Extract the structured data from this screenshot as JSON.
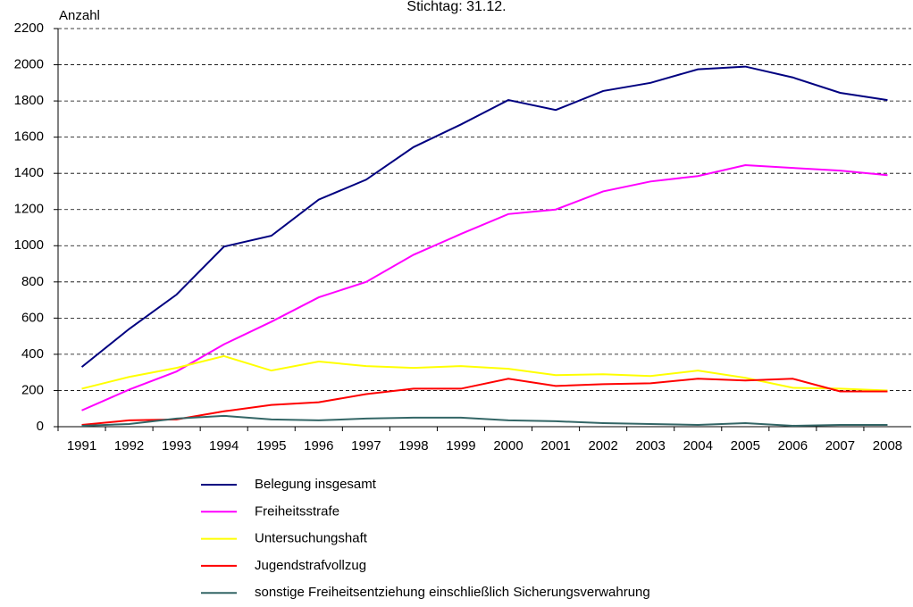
{
  "chart_data": {
    "type": "line",
    "title": "Stichtag: 31.12.",
    "y_label": "Anzahl",
    "categories": [
      "1991",
      "1992",
      "1993",
      "1994",
      "1995",
      "1996",
      "1997",
      "1998",
      "1999",
      "2000",
      "2001",
      "2002",
      "2003",
      "2004",
      "2005",
      "2006",
      "2007",
      "2008"
    ],
    "series": [
      {
        "name": "Belegung insgesamt",
        "color": "#000080",
        "values": [
          330,
          540,
          730,
          995,
          1055,
          1255,
          1365,
          1545,
          1670,
          1805,
          1750,
          1855,
          1900,
          1975,
          1990,
          1930,
          1845,
          1805
        ]
      },
      {
        "name": "Freiheitsstrafe",
        "color": "#ff00ff",
        "values": [
          90,
          205,
          305,
          455,
          580,
          715,
          800,
          950,
          1065,
          1175,
          1200,
          1300,
          1355,
          1385,
          1445,
          1430,
          1415,
          1390
        ]
      },
      {
        "name": "Untersuchungshaft",
        "color": "#ffff00",
        "values": [
          210,
          275,
          325,
          390,
          310,
          360,
          335,
          325,
          335,
          320,
          285,
          290,
          280,
          310,
          270,
          215,
          210,
          200
        ]
      },
      {
        "name": "Jugendstrafvollzug",
        "color": "#ff0000",
        "values": [
          10,
          35,
          40,
          85,
          120,
          135,
          180,
          210,
          210,
          265,
          225,
          235,
          240,
          265,
          255,
          265,
          195,
          195
        ]
      },
      {
        "name": "sonstige Freiheitsentziehung einschließlich Sicherungsverwahrung",
        "color": "#336666",
        "values": [
          5,
          15,
          45,
          60,
          40,
          35,
          45,
          50,
          50,
          35,
          30,
          20,
          15,
          10,
          20,
          5,
          10,
          10
        ]
      }
    ],
    "ylim": [
      0,
      2200
    ],
    "yticks": [
      0,
      200,
      400,
      600,
      800,
      1000,
      1200,
      1400,
      1600,
      1800,
      2000,
      2200
    ],
    "grid": true
  }
}
